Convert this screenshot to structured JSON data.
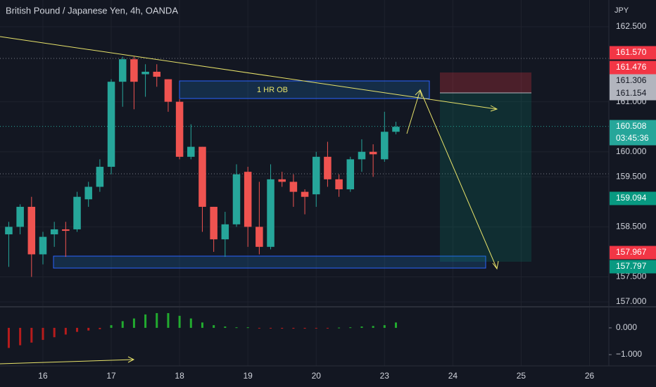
{
  "chart_data": [
    {
      "type": "candlestick",
      "title": "British Pound / Japanese Yen, 4h, OANDA",
      "currency": "JPY",
      "x": [
        0,
        1,
        2,
        3,
        4,
        5,
        6,
        7,
        8,
        9,
        10,
        11,
        12,
        13,
        14,
        15,
        16,
        17,
        18,
        19,
        20,
        21,
        22,
        23,
        24,
        25,
        26,
        27,
        28,
        29,
        30,
        31,
        32,
        33,
        34
      ],
      "open": [
        158.35,
        158.5,
        158.9,
        157.95,
        158.35,
        158.45,
        158.45,
        159.05,
        159.3,
        159.7,
        161.4,
        161.85,
        161.55,
        161.6,
        161.45,
        161.0,
        159.9,
        160.1,
        158.9,
        158.25,
        158.55,
        159.6,
        158.5,
        158.1,
        159.45,
        159.4,
        159.2,
        159.15,
        159.9,
        159.45,
        159.25,
        159.85,
        160.0,
        159.85,
        160.4
      ],
      "high": [
        158.6,
        158.95,
        159.1,
        158.4,
        158.6,
        158.6,
        159.2,
        159.4,
        159.85,
        161.45,
        161.9,
        161.9,
        161.75,
        161.75,
        161.45,
        161.05,
        160.55,
        160.1,
        158.9,
        158.8,
        159.75,
        159.7,
        159.4,
        159.75,
        159.6,
        159.55,
        159.25,
        160.0,
        160.2,
        159.55,
        159.9,
        160.25,
        160.15,
        160.8,
        160.6
      ],
      "low": [
        157.7,
        158.35,
        157.5,
        157.75,
        158.1,
        157.9,
        158.4,
        158.9,
        159.2,
        159.55,
        160.9,
        160.85,
        161.1,
        161.3,
        160.8,
        159.85,
        159.85,
        158.4,
        158.0,
        157.9,
        158.5,
        158.1,
        157.95,
        158.05,
        159.3,
        158.9,
        158.75,
        158.9,
        159.3,
        159.1,
        159.2,
        159.6,
        159.5,
        159.8,
        160.35
      ],
      "close": [
        158.5,
        158.9,
        157.95,
        158.3,
        158.45,
        158.42,
        159.1,
        159.3,
        159.7,
        161.4,
        161.85,
        161.4,
        161.6,
        161.5,
        161.0,
        159.9,
        160.1,
        158.9,
        158.25,
        158.55,
        159.55,
        158.5,
        158.1,
        159.45,
        159.4,
        159.2,
        159.1,
        159.9,
        159.45,
        159.25,
        159.85,
        160.0,
        159.95,
        160.4,
        160.5
      ],
      "up_color": "#26a69a",
      "down_color": "#ef5350",
      "xlim": [
        -0.77,
        52.7
      ],
      "xticks": [
        {
          "value": 3,
          "label": "16"
        },
        {
          "value": 9,
          "label": "17"
        },
        {
          "value": 15,
          "label": "18"
        },
        {
          "value": 21,
          "label": "19"
        },
        {
          "value": 27,
          "label": "20"
        },
        {
          "value": 33,
          "label": "23"
        },
        {
          "value": 39,
          "label": "24"
        },
        {
          "value": 45,
          "label": "25"
        },
        {
          "value": 51,
          "label": "26"
        }
      ],
      "ylim": [
        156.916,
        163.034
      ],
      "yticks": [
        {
          "value": 162.5,
          "label": "162.500"
        },
        {
          "value": 161,
          "label": "161.000"
        },
        {
          "value": 160,
          "label": "160.000"
        },
        {
          "value": 159.5,
          "label": "159.500"
        },
        {
          "value": 158.5,
          "label": "158.500"
        },
        {
          "value": 157.5,
          "label": "157.500"
        },
        {
          "value": 157,
          "label": "157.000"
        }
      ],
      "price_badges": [
        {
          "value": 161.57,
          "label": "161.570",
          "color": "#f23645"
        },
        {
          "value": 161.476,
          "label": "161.476",
          "color": "#f23645"
        },
        {
          "value": 161.306,
          "label": "161.306",
          "color": "#b2b5be"
        },
        {
          "value": 161.154,
          "label": "161.154",
          "color": "#b2b5be"
        },
        {
          "value": 160.508,
          "label": "160.508",
          "color": "#26a69a"
        },
        {
          "value": 159.094,
          "label": "159.094",
          "color": "#089981"
        },
        {
          "value": 157.967,
          "label": "157.967",
          "color": "#f23645"
        },
        {
          "value": 157.797,
          "label": "157.797",
          "color": "#089981"
        }
      ],
      "countdown": "03:45:36",
      "annotation": "1 HR OB"
    },
    {
      "type": "bar",
      "values": [
        -0.75,
        -0.65,
        -0.55,
        -0.45,
        -0.35,
        -0.25,
        -0.15,
        -0.1,
        -0.05,
        0.1,
        0.25,
        0.35,
        0.5,
        0.55,
        0.55,
        0.45,
        0.35,
        0.2,
        0.1,
        0.05,
        0.02,
        0.02,
        -0.02,
        -0.02,
        -0.03,
        -0.03,
        -0.03,
        -0.02,
        -0.02,
        0.01,
        0.02,
        0.05,
        0.07,
        0.1,
        0.2
      ],
      "up_color": "#22ab2f",
      "down_color": "#b71c1c",
      "ylim": [
        -1.42,
        0.76
      ],
      "yticks": [
        {
          "value": 0,
          "label": "0.000"
        },
        {
          "value": -1,
          "label": "−1.000"
        }
      ]
    }
  ]
}
